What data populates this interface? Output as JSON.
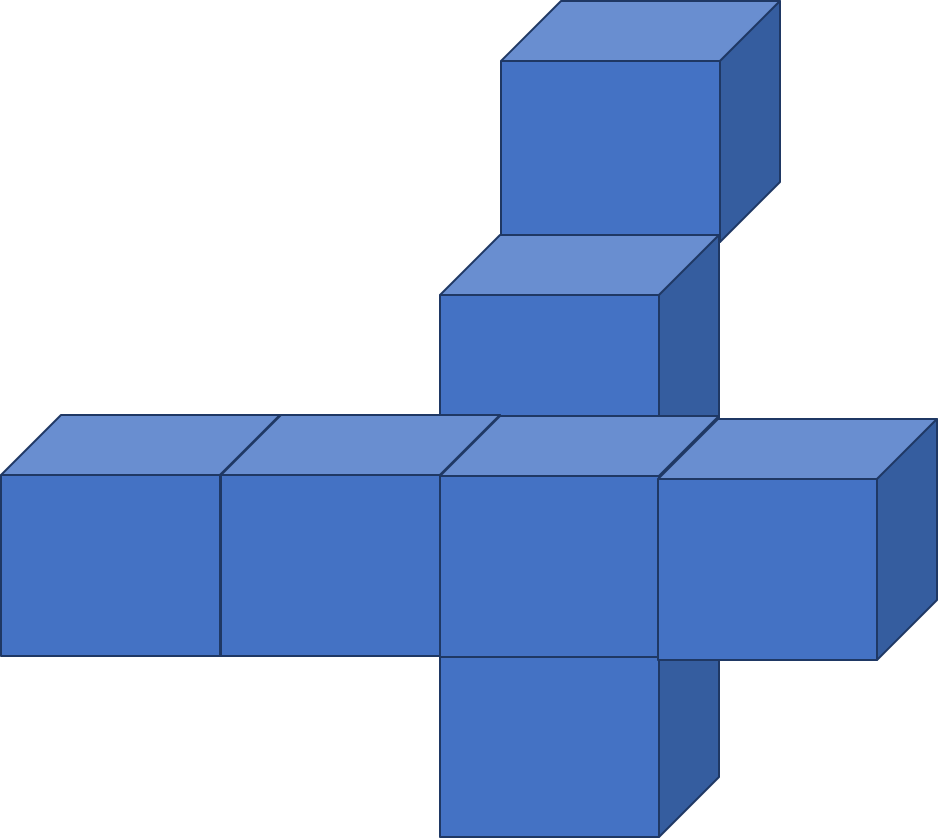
{
  "diagram": {
    "kind": "isometric-cube-arrangement",
    "cube_count": 7,
    "colors": {
      "front": "#4472C4",
      "top": "#698ED0",
      "side": "#355D9F",
      "edge": "#1F3864",
      "background": "#FFFFFF"
    }
  }
}
